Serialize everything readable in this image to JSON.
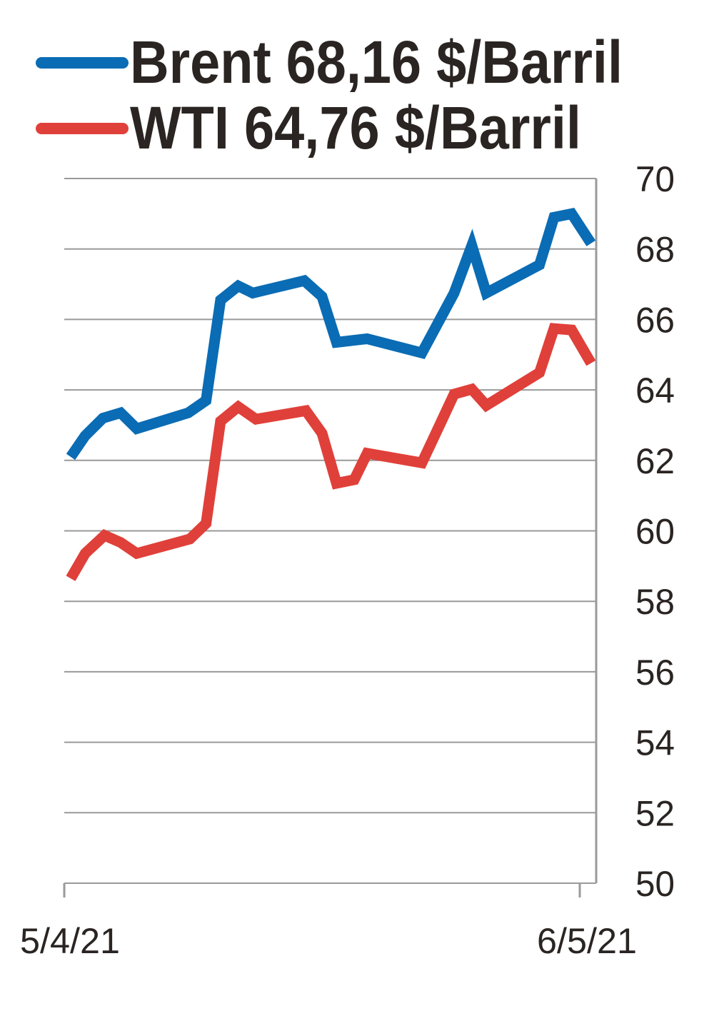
{
  "chart_data": {
    "type": "line",
    "title": "",
    "xlabel": "",
    "ylabel": "",
    "ylim": [
      50,
      70
    ],
    "yticks": [
      "70",
      "68",
      "66",
      "64",
      "62",
      "60",
      "58",
      "56",
      "54",
      "52",
      "50"
    ],
    "ytick_values": [
      70,
      68,
      66,
      64,
      62,
      60,
      58,
      56,
      54,
      52,
      50
    ],
    "xlim": [
      0,
      33
    ],
    "xticks": [
      {
        "label": "5/4/21",
        "x": 0
      },
      {
        "label": "6/5/21",
        "x": 32
      }
    ],
    "x_units": "days since 5/4/21",
    "grid": true,
    "y_axis_position": "right",
    "legend_position": "top-left",
    "series": [
      {
        "name": "Brent 68,16 $/Barril",
        "color": "#0a6cb4",
        "x": [
          0.4,
          1.3,
          2.4,
          3.5,
          4.5,
          7.7,
          8.8,
          9.7,
          10.8,
          11.7,
          14.9,
          16.0,
          16.9,
          18.8,
          22.2,
          24.2,
          25.3,
          26.2,
          29.5,
          30.4,
          31.5,
          32.7
        ],
        "values": [
          62.1,
          62.7,
          63.2,
          63.35,
          62.9,
          63.35,
          63.7,
          66.55,
          66.95,
          66.75,
          67.1,
          66.65,
          65.35,
          65.45,
          65.05,
          66.75,
          68.1,
          66.75,
          67.55,
          68.9,
          69.0,
          68.16
        ]
      },
      {
        "name": "WTI 64,76 $/Barril",
        "color": "#e0403a",
        "x": [
          0.4,
          1.3,
          2.5,
          3.5,
          4.5,
          7.8,
          8.8,
          9.7,
          10.8,
          11.9,
          15.0,
          16.0,
          16.9,
          18.0,
          18.8,
          22.2,
          23.3,
          24.2,
          25.3,
          26.2,
          29.5,
          30.4,
          31.5,
          32.7
        ],
        "values": [
          58.65,
          59.36,
          59.87,
          59.67,
          59.36,
          59.77,
          60.21,
          63.11,
          63.52,
          63.17,
          63.41,
          62.77,
          61.35,
          61.45,
          62.2,
          61.93,
          63.0,
          63.88,
          64.02,
          63.56,
          64.49,
          65.74,
          65.7,
          64.76
        ]
      }
    ]
  }
}
